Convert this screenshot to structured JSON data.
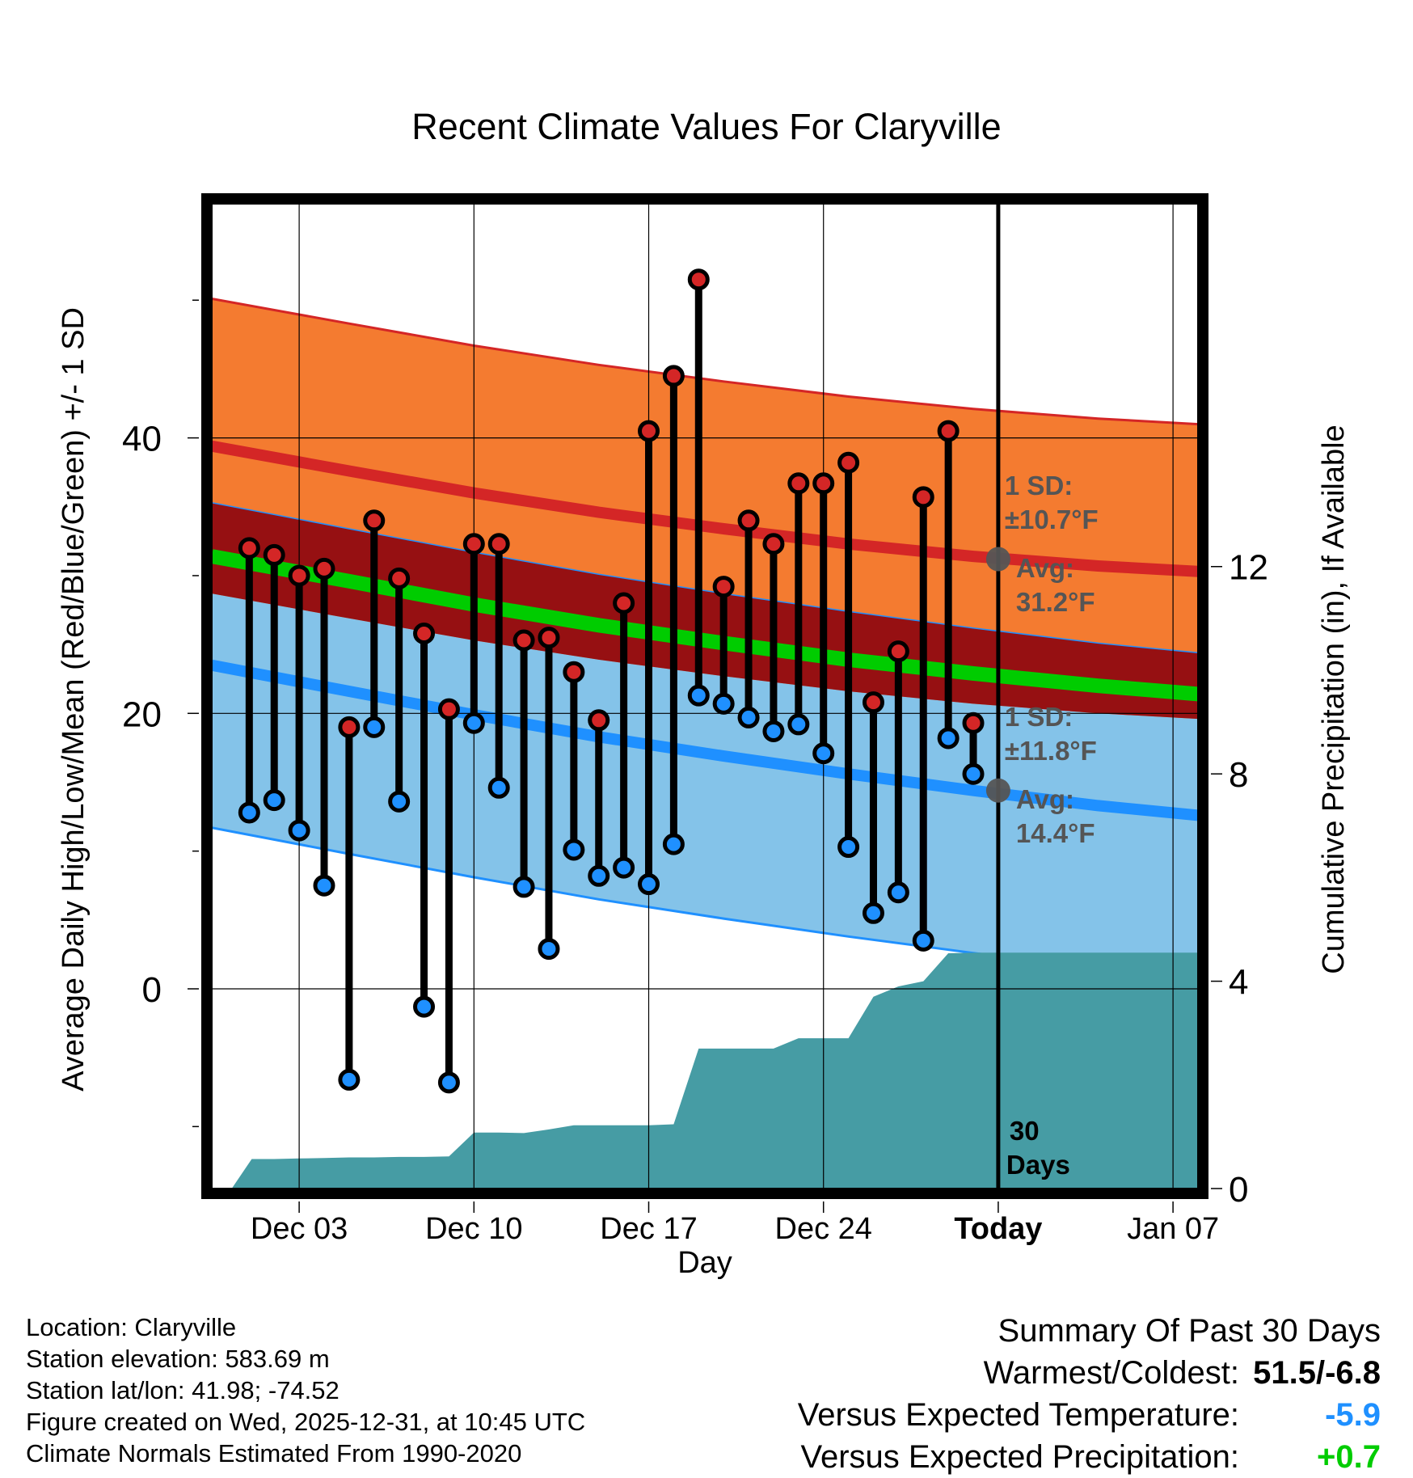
{
  "chart_data": {
    "type": "line",
    "title": "Recent Climate Values For Claryville",
    "xlabel": "Day",
    "ylabel_left": "Average Daily High/Low/Mean (Red/Blue/Green) +/- 1 SD",
    "ylabel_right": "Cumulative Precipitation (in), If Available",
    "x_day_range": [
      -0.5,
      39
    ],
    "ylim_left": [
      -14.5,
      57
    ],
    "ylim_right": [
      0,
      19
    ],
    "xticks": [
      {
        "day": 3,
        "label": "Dec 03",
        "bold": false
      },
      {
        "day": 10,
        "label": "Dec 10",
        "bold": false
      },
      {
        "day": 17,
        "label": "Dec 17",
        "bold": false
      },
      {
        "day": 24,
        "label": "Dec 24",
        "bold": false
      },
      {
        "day": 31,
        "label": "Today",
        "bold": true
      },
      {
        "day": 38,
        "label": "Jan 07",
        "bold": false
      }
    ],
    "yticks_left": [
      0,
      20,
      40
    ],
    "yticks_left_minor": [
      -10,
      10,
      30,
      50
    ],
    "yticks_right": [
      0,
      4,
      8,
      12
    ],
    "today_day": 31,
    "normals_days": [
      -0.5,
      5,
      10,
      15,
      20,
      25,
      30,
      35,
      39
    ],
    "normal_high_mean": [
      39.4,
      37.6,
      36.0,
      34.6,
      33.4,
      32.3,
      31.4,
      30.7,
      30.3
    ],
    "normal_high_sd": 10.7,
    "normal_low_mean": [
      23.5,
      21.6,
      19.9,
      18.3,
      16.9,
      15.6,
      14.4,
      13.3,
      12.6
    ],
    "normal_low_sd": 11.8,
    "normal_mean": [
      31.4,
      29.6,
      27.9,
      26.4,
      25.1,
      23.9,
      22.9,
      22.0,
      21.4
    ],
    "series": [
      {
        "name": "Daily High",
        "days": [
          1,
          2,
          3,
          4,
          5,
          6,
          7,
          8,
          9,
          10,
          11,
          12,
          13,
          14,
          15,
          16,
          17,
          18,
          19,
          20,
          21,
          22,
          23,
          24,
          25,
          26,
          27,
          28,
          29,
          30
        ],
        "values": [
          32.0,
          31.5,
          30.0,
          30.5,
          19.0,
          34.0,
          29.8,
          25.8,
          20.3,
          32.3,
          32.3,
          25.3,
          25.5,
          23.0,
          19.5,
          28.0,
          40.5,
          44.5,
          51.5,
          29.2,
          34.0,
          32.3,
          36.7,
          36.7,
          38.2,
          20.8,
          24.5,
          35.7,
          40.5,
          19.3
        ]
      },
      {
        "name": "Daily Low",
        "days": [
          1,
          2,
          3,
          4,
          5,
          6,
          7,
          8,
          9,
          10,
          11,
          12,
          13,
          14,
          15,
          16,
          17,
          18,
          19,
          20,
          21,
          22,
          23,
          24,
          25,
          26,
          27,
          28,
          29,
          30
        ],
        "values": [
          12.8,
          13.7,
          11.5,
          7.5,
          -6.6,
          19.0,
          13.6,
          -1.3,
          -6.8,
          19.3,
          14.6,
          7.4,
          2.9,
          10.1,
          8.2,
          8.8,
          7.6,
          10.5,
          21.3,
          20.7,
          19.7,
          18.7,
          19.2,
          17.1,
          10.3,
          5.5,
          7.0,
          3.5,
          18.2,
          15.6
        ]
      },
      {
        "name": "Cumulative Precipitation",
        "days": [
          -0.5,
          0.3,
          1.1,
          2.0,
          3.0,
          4.0,
          5.0,
          6.0,
          7.0,
          8.0,
          9.0,
          10.0,
          11.0,
          12.0,
          13.0,
          14.0,
          15.0,
          16.0,
          17.0,
          18.0,
          19.0,
          20.0,
          21.0,
          22.0,
          23.0,
          24.0,
          25.0,
          26.0,
          27.0,
          28.0,
          29.0,
          30.0,
          31.0,
          39.0
        ],
        "values": [
          0,
          0,
          0.57,
          0.57,
          0.58,
          0.59,
          0.6,
          0.6,
          0.61,
          0.61,
          0.62,
          1.08,
          1.08,
          1.07,
          1.14,
          1.22,
          1.22,
          1.22,
          1.22,
          1.24,
          2.7,
          2.7,
          2.7,
          2.7,
          2.9,
          2.9,
          2.9,
          3.7,
          3.9,
          4.0,
          4.54,
          4.55,
          4.55,
          4.55
        ]
      }
    ],
    "annotations": {
      "high_sd_label": "1 SD:",
      "high_sd_value": "±10.7°F",
      "high_avg_label": "Avg:",
      "high_avg_value": "31.2°F",
      "high_avg_marker": 31.2,
      "low_sd_label": "1 SD:",
      "low_sd_value": "±11.8°F",
      "low_avg_label": "Avg:",
      "low_avg_value": "14.4°F",
      "low_avg_marker": 14.4,
      "days_line1": "30",
      "days_line2": "Days"
    },
    "colors": {
      "high_band": "#f47b30",
      "high_band_edge": "#d42626",
      "high_mean_line": "#d42626",
      "low_band": "#84c3e9",
      "low_band_edge": "#1f90ff",
      "low_mean_line": "#1f90ff",
      "overlap": "#961012",
      "mean_line": "#00cc00",
      "precip": "#469ca4",
      "high_dot": "#d42626",
      "low_dot": "#1f90ff",
      "annotation": "#555555"
    }
  },
  "info": {
    "location": "Location: Claryville",
    "elevation": "Station elevation: 583.69 m",
    "latlon": "Station lat/lon: 41.98; -74.52",
    "created": "Figure created on Wed, 2025-12-31, at 10:45 UTC",
    "normals": "Climate Normals Estimated From 1990-2020"
  },
  "summary": {
    "title": "Summary Of Past 30 Days",
    "warm_cold_label": "Warmest/Coldest:",
    "warm_cold_value": "51.5/-6.8",
    "temp_label": "Versus Expected Temperature:",
    "temp_value": "-5.9",
    "temp_color": "#1f90ff",
    "precip_label": "Versus Expected Precipitation:",
    "precip_value": "+0.7",
    "precip_color": "#00cc00"
  }
}
